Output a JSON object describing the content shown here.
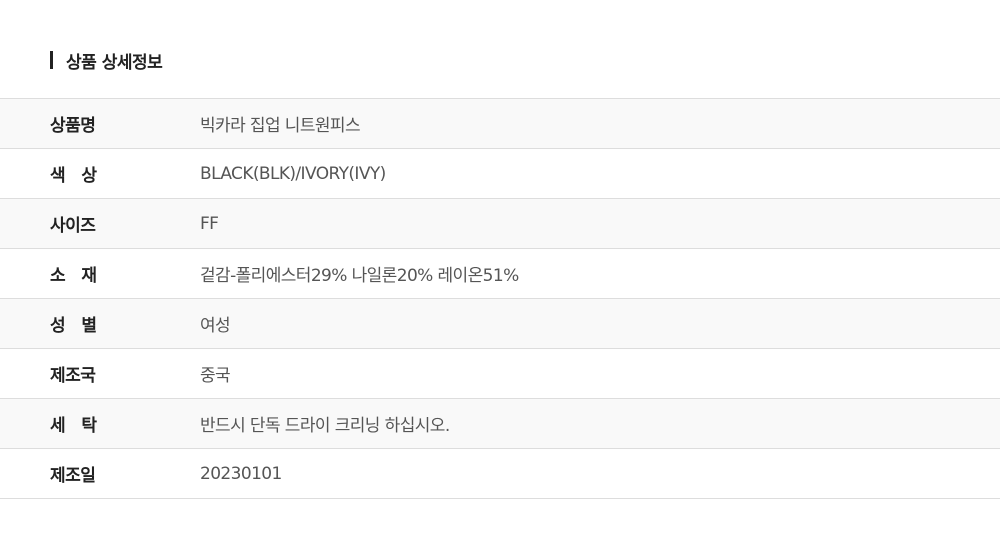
{
  "section_title": "상품 상세정보",
  "rows": [
    {
      "label": "상품명",
      "value": "빅카라 집업 니트원피스"
    },
    {
      "label": "색   상",
      "value": "BLACK(BLK)/IVORY(IVY)"
    },
    {
      "label": "사이즈",
      "value": "FF"
    },
    {
      "label": "소   재",
      "value": "겉감-폴리에스터29% 나일론20% 레이온51%"
    },
    {
      "label": "성   별",
      "value": "여성"
    },
    {
      "label": "제조국",
      "value": "중국"
    },
    {
      "label": "세   탁",
      "value": "반드시 단독 드라이 크리닝 하십시오."
    },
    {
      "label": "제조일",
      "value": "20230101"
    }
  ]
}
